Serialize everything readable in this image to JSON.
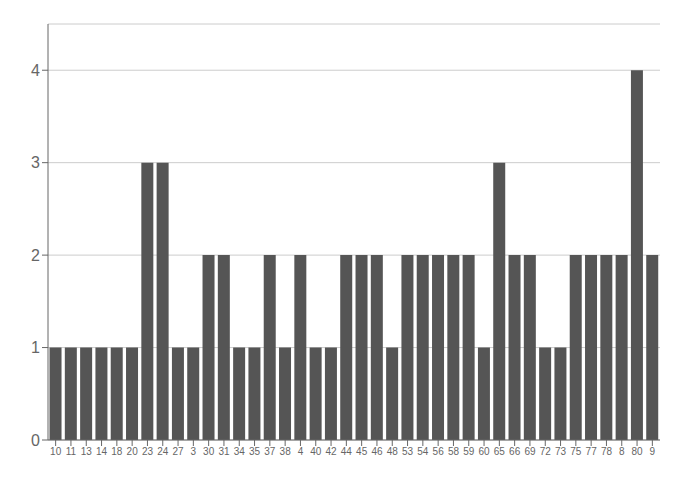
{
  "chart_data": {
    "type": "bar",
    "categories": [
      "10",
      "11",
      "13",
      "14",
      "18",
      "20",
      "23",
      "24",
      "27",
      "3",
      "30",
      "31",
      "34",
      "35",
      "37",
      "38",
      "4",
      "40",
      "42",
      "44",
      "45",
      "46",
      "48",
      "53",
      "54",
      "56",
      "58",
      "59",
      "60",
      "65",
      "66",
      "69",
      "72",
      "73",
      "75",
      "77",
      "78",
      "8",
      "80",
      "9"
    ],
    "values": [
      1,
      1,
      1,
      1,
      1,
      1,
      3,
      3,
      1,
      1,
      2,
      2,
      1,
      1,
      2,
      1,
      2,
      1,
      1,
      2,
      2,
      2,
      1,
      2,
      2,
      2,
      2,
      2,
      1,
      3,
      2,
      2,
      1,
      1,
      2,
      2,
      2,
      2,
      4,
      2
    ],
    "color": "#555555",
    "ylim": [
      0,
      4.5
    ],
    "yticks": [
      0,
      1,
      2,
      3,
      4
    ],
    "grid": true
  }
}
